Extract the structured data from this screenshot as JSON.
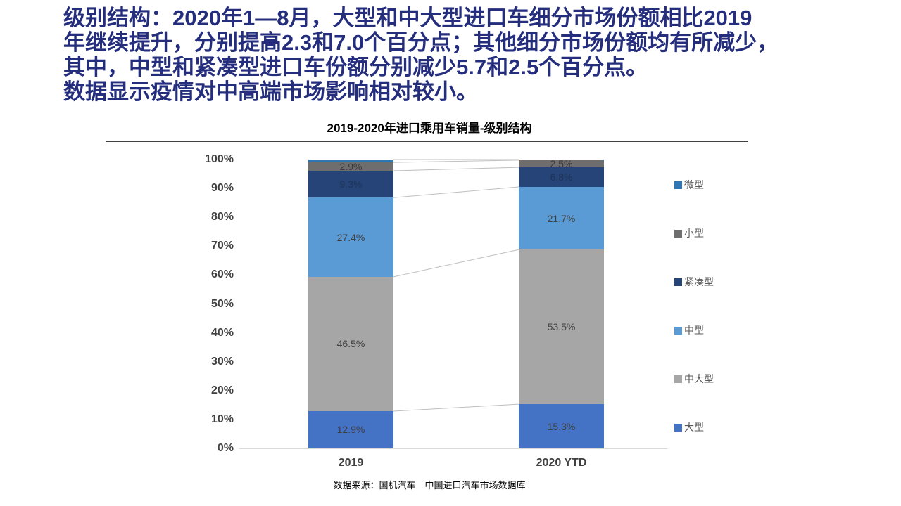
{
  "page": {
    "background": "#ffffff"
  },
  "header": {
    "color": "#252e7d",
    "lines": [
      "级别结构：2020年1—8月，大型和中大型进口车细分市场份额相比2019",
      "年继续提升，分别提高2.3和7.0个百分点；其他细分市场份额均有所减少，",
      "其中，中型和紧凑型进口车份额分别减少5.7和2.5个百分点。",
      "数据显示疫情对中高端市场影响相对较小。"
    ]
  },
  "chart": {
    "title": "2019-2020年进口乘用车销量-级别结构",
    "source": "数据来源：国机汽车—中国进口汽车市场数据库"
  },
  "chart_data": {
    "type": "bar",
    "subtype": "100%-stacked-column",
    "title": "2019-2020年进口乘用车销量-级别结构",
    "categories": [
      "2019",
      "2020 YTD"
    ],
    "series": [
      {
        "name": "大型",
        "color": "#4472C4",
        "values": [
          12.9,
          15.3
        ],
        "labels": [
          "12.9%",
          "15.3%"
        ],
        "label_color": "#404040"
      },
      {
        "name": "中大型",
        "color": "#A6A6A6",
        "values": [
          46.5,
          53.5
        ],
        "labels": [
          "46.5%",
          "53.5%"
        ],
        "label_color": "#404040"
      },
      {
        "name": "中型",
        "color": "#5B9BD5",
        "values": [
          27.4,
          21.7
        ],
        "labels": [
          "27.4%",
          "21.7%"
        ],
        "label_color": "#404040"
      },
      {
        "name": "紧凑型",
        "color": "#264478",
        "values": [
          9.3,
          6.8
        ],
        "labels": [
          "9.3%",
          "6.8%"
        ],
        "label_color": "#1e3357"
      },
      {
        "name": "小型",
        "color": "#6E6E6E",
        "values": [
          2.9,
          2.5
        ],
        "labels": [
          "2.9%",
          "2.5%"
        ],
        "label_color": "#3a3a3a"
      },
      {
        "name": "微型",
        "color": "#2E75B6",
        "values": [
          1.0,
          0.2
        ],
        "labels": [
          "",
          ""
        ],
        "label_color": "#404040"
      }
    ],
    "ylim": [
      0,
      100
    ],
    "yticks": [
      "0%",
      "10%",
      "20%",
      "30%",
      "40%",
      "50%",
      "60%",
      "70%",
      "80%",
      "90%",
      "100%"
    ],
    "grid": false,
    "legend_position": "right",
    "legend_order": [
      "微型",
      "小型",
      "紧凑型",
      "中型",
      "中大型",
      "大型"
    ],
    "connector_line_color": "#bfbfbf",
    "axis_line_color": "#d9d9d9",
    "xlabel": "",
    "ylabel": ""
  }
}
